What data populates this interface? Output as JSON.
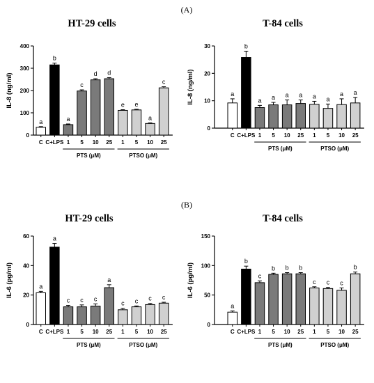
{
  "panel_labels": [
    "(A)",
    "(B)"
  ],
  "chart_data": [
    {
      "type": "bar",
      "title": "HT-29 cells",
      "ylabel": "IL-8 (ng/ml)",
      "ylim": [
        0,
        400
      ],
      "yticks": [
        0,
        100,
        200,
        300,
        400
      ],
      "categories": [
        "C",
        "C+LPS",
        "1",
        "5",
        "10",
        "25",
        "1",
        "5",
        "10",
        "25"
      ],
      "values": [
        35,
        315,
        47,
        198,
        248,
        253,
        111,
        113,
        52,
        212
      ],
      "errors": [
        3,
        8,
        3,
        5,
        5,
        5,
        3,
        3,
        3,
        5
      ],
      "letters": [
        "a",
        "b",
        "a",
        "c",
        "d",
        "d",
        "e",
        "e",
        "a",
        "c"
      ],
      "groups": [
        {
          "label": "PTS (μM)",
          "start": 2,
          "end": 5
        },
        {
          "label": "PTSO (μM)",
          "start": 6,
          "end": 9
        }
      ]
    },
    {
      "type": "bar",
      "title": "T-84 cells",
      "ylabel": "IL-8 (ng/ml)",
      "ylim": [
        0,
        30
      ],
      "yticks": [
        0,
        10,
        20,
        30
      ],
      "categories": [
        "C",
        "C+LPS",
        "1",
        "5",
        "10",
        "25",
        "1",
        "5",
        "10",
        "25"
      ],
      "values": [
        9.2,
        25.8,
        7.5,
        8.5,
        8.5,
        9.0,
        8.7,
        7.2,
        8.6,
        9.2
      ],
      "errors": [
        1.5,
        2.3,
        0.8,
        0.9,
        1.8,
        1.3,
        1.1,
        1.6,
        2.1,
        2.0
      ],
      "letters": [
        "a",
        "b",
        "a",
        "a",
        "a",
        "a",
        "a",
        "a",
        "a",
        "a"
      ],
      "groups": [
        {
          "label": "PTS (μM)",
          "start": 2,
          "end": 5
        },
        {
          "label": "PTSO (μM)",
          "start": 6,
          "end": 9
        }
      ]
    },
    {
      "type": "bar",
      "title": "HT-29 cells",
      "ylabel": "IL-6 (pg/ml)",
      "ylim": [
        0,
        60
      ],
      "yticks": [
        0,
        20,
        40,
        60
      ],
      "categories": [
        "C",
        "C+LPS",
        "1",
        "5",
        "10",
        "25",
        "1",
        "5",
        "10",
        "25"
      ],
      "values": [
        21.5,
        52.5,
        12,
        12,
        12.5,
        25,
        10,
        12,
        13.5,
        14.5
      ],
      "errors": [
        1,
        2.5,
        1,
        1.3,
        1.5,
        2,
        1,
        0.6,
        0.8,
        0.6
      ],
      "letters": [
        "a",
        "a",
        "c",
        "c",
        "c",
        "a",
        "c",
        "c",
        "c",
        "c"
      ],
      "groups": [
        {
          "label": "PTS (μM)",
          "start": 2,
          "end": 5
        },
        {
          "label": "PTSO (μM)",
          "start": 6,
          "end": 9
        }
      ]
    },
    {
      "type": "bar",
      "title": "T-84 cells",
      "ylabel": "IL-6 (pg/ml)",
      "ylim": [
        0,
        150
      ],
      "yticks": [
        0,
        50,
        100,
        150
      ],
      "categories": [
        "C",
        "C+LPS",
        "1",
        "5",
        "10",
        "25",
        "1",
        "5",
        "10",
        "25"
      ],
      "values": [
        21,
        94,
        71,
        85,
        86,
        86,
        62,
        61,
        58,
        86
      ],
      "errors": [
        2,
        5,
        3,
        2,
        2,
        2,
        2,
        2,
        4,
        3
      ],
      "letters": [
        "a",
        "b",
        "c",
        "b",
        "b",
        "b",
        "c",
        "c",
        "c",
        "b"
      ],
      "groups": [
        {
          "label": "PTS (μM)",
          "start": 2,
          "end": 5
        },
        {
          "label": "PTSO (μM)",
          "start": 6,
          "end": 9
        }
      ]
    }
  ],
  "colors": {
    "control": "#ffffff",
    "lps": "#000000",
    "pts": "#7a7a7a",
    "ptso": "#d0d0d0",
    "axis": "#000000"
  }
}
